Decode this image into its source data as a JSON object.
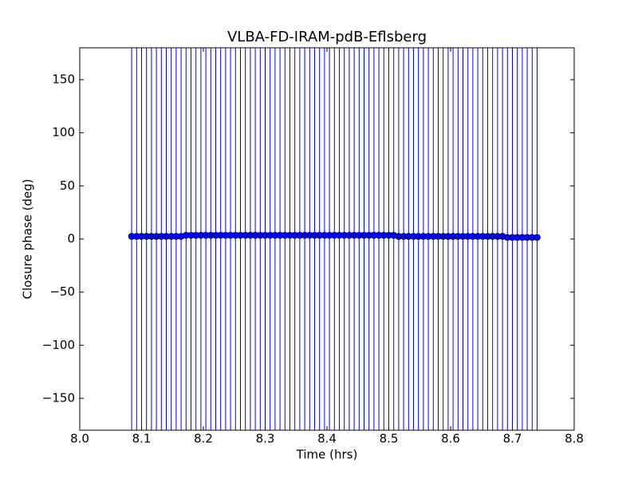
{
  "chart_data": {
    "type": "errorbar",
    "title": "VLBA-FD-IRAM-pdB-Eflsberg",
    "x_label": "Time (hrs)",
    "y_label": "Closure phase (deg)",
    "color": "#0000ff",
    "yerr": 200,
    "x": [
      8.084,
      8.092,
      8.1,
      8.108,
      8.116,
      8.124,
      8.132,
      8.14,
      8.148,
      8.156,
      8.164,
      8.172,
      8.18,
      8.188,
      8.196,
      8.204,
      8.212,
      8.22,
      8.228,
      8.236,
      8.244,
      8.252,
      8.26,
      8.268,
      8.276,
      8.284,
      8.292,
      8.3,
      8.308,
      8.316,
      8.324,
      8.332,
      8.34,
      8.348,
      8.356,
      8.364,
      8.372,
      8.38,
      8.388,
      8.396,
      8.404,
      8.412,
      8.42,
      8.428,
      8.436,
      8.444,
      8.452,
      8.46,
      8.468,
      8.476,
      8.484,
      8.492,
      8.5,
      8.508,
      8.516,
      8.524,
      8.532,
      8.54,
      8.548,
      8.556,
      8.564,
      8.572,
      8.58,
      8.588,
      8.596,
      8.604,
      8.612,
      8.62,
      8.628,
      8.636,
      8.644,
      8.652,
      8.66,
      8.668,
      8.676,
      8.684,
      8.692,
      8.7,
      8.708,
      8.716,
      8.724,
      8.732,
      8.74
    ],
    "values": [
      2.5,
      2.5,
      2.5,
      2.5,
      2.5,
      2.5,
      2.5,
      2.5,
      2.5,
      2.5,
      2.5,
      3.5,
      3.5,
      3.5,
      3.5,
      3.5,
      3.5,
      3.5,
      3.5,
      3.5,
      3.5,
      3.5,
      3.5,
      3.5,
      3.5,
      3.5,
      3.5,
      3.5,
      3.5,
      3.5,
      3.5,
      3.5,
      3.5,
      3.5,
      3.5,
      3.5,
      3.5,
      3.5,
      3.5,
      3.5,
      3.5,
      3.5,
      3.5,
      3.5,
      3.5,
      3.5,
      3.5,
      3.5,
      3.5,
      3.5,
      3.5,
      3.5,
      3.5,
      3.5,
      2.5,
      2.5,
      2.5,
      2.5,
      2.5,
      2.5,
      2.5,
      2.5,
      2.5,
      2.5,
      2.5,
      2.5,
      2.5,
      2.5,
      2.5,
      2.5,
      2.5,
      2.5,
      2.5,
      2.5,
      2.5,
      2.5,
      1.5,
      1.5,
      1.5,
      1.5,
      1.5,
      1.5,
      1.5
    ],
    "xlim": [
      8.0,
      8.8
    ],
    "xticks": [
      {
        "value": 8,
        "label": "8.0"
      },
      8.1,
      8.2,
      8.3,
      8.4,
      8.5,
      8.6,
      8.7,
      8.8
    ],
    "ylim": [
      -180,
      180
    ],
    "yticks": [
      {
        "value": -150,
        "label": "−150"
      },
      {
        "value": -100,
        "label": "−100"
      },
      {
        "value": -50,
        "label": "−50"
      },
      0,
      50,
      100,
      150
    ]
  }
}
